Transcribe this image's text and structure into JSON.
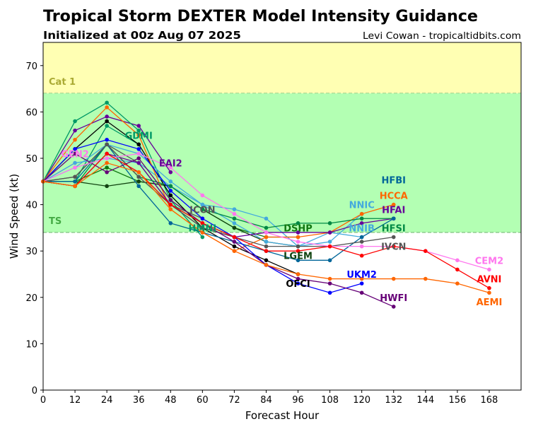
{
  "header": {
    "title": "Tropical Storm DEXTER Model Intensity Guidance",
    "subtitle": "Initialized at 00z Aug 07 2025",
    "credit": "Levi Cowan - tropicaltidbits.com"
  },
  "chart_data": {
    "type": "line",
    "xlabel": "Forecast Hour",
    "ylabel": "Wind Speed (kt)",
    "xlim": [
      0,
      180
    ],
    "ylim": [
      0,
      75
    ],
    "xticks": [
      0,
      12,
      24,
      36,
      48,
      60,
      72,
      84,
      96,
      108,
      120,
      132,
      144,
      156,
      168
    ],
    "yticks": [
      0,
      10,
      20,
      30,
      40,
      50,
      60,
      70
    ],
    "bands": [
      {
        "name": "Cat 1",
        "from": 64,
        "to": 75,
        "color": "#ffffb3",
        "label_color": "#aaaa33"
      },
      {
        "name": "TS",
        "from": 34,
        "to": 64,
        "color": "#b3ffb3",
        "label_color": "#44aa44"
      }
    ],
    "x_step": 12,
    "series": [
      {
        "name": "GEN2",
        "color": "#ff77ee",
        "values": [
          45,
          49
        ]
      },
      {
        "name": "GDMI",
        "color": "#009966",
        "values": [
          45,
          45,
          57,
          53
        ]
      },
      {
        "name": "EAI2",
        "color": "#660099",
        "values": [
          45,
          56,
          59,
          57,
          47
        ]
      },
      {
        "name": "ICON",
        "color": "#555555",
        "values": [
          45,
          46,
          53,
          49,
          40,
          37
        ]
      },
      {
        "name": "HMNI",
        "color": "#009966",
        "values": [
          45,
          58,
          62,
          56,
          41,
          33
        ]
      },
      {
        "name": "DSHP",
        "color": "#117711",
        "values": [
          45,
          45,
          48,
          45,
          44,
          39,
          35,
          33,
          33
        ]
      },
      {
        "name": "LGEM",
        "color": "#114411",
        "values": [
          45,
          45,
          44,
          45,
          44,
          39,
          35,
          32,
          31
        ]
      },
      {
        "name": "OFCI",
        "color": "#000000",
        "values": [
          45,
          52,
          58,
          53,
          42,
          35,
          31,
          28,
          25
        ]
      },
      {
        "name": "NNIC",
        "color": "#44aadd",
        "values": [
          45,
          48,
          53,
          51,
          45,
          40,
          39,
          37,
          31,
          32,
          38
        ]
      },
      {
        "name": "NNIB",
        "color": "#44aadd",
        "values": [
          45,
          49,
          50,
          49,
          44,
          40,
          36,
          32,
          31,
          34,
          33
        ]
      },
      {
        "name": "HCCA",
        "color": "#ff6600",
        "values": [
          45,
          54,
          61,
          55,
          39,
          34,
          30,
          33,
          33,
          34,
          38,
          40
        ]
      },
      {
        "name": "HFAI",
        "color": "#660099",
        "values": [
          45,
          44,
          51,
          49,
          40,
          35,
          33,
          34,
          34,
          34,
          36,
          37
        ]
      },
      {
        "name": "HFSI",
        "color": "#008844",
        "values": [
          45,
          44,
          53,
          46,
          44,
          39,
          37,
          35,
          36,
          36,
          37,
          37
        ]
      },
      {
        "name": "HFBI",
        "color": "#006699",
        "values": [
          45,
          45,
          53,
          44,
          36,
          34,
          32,
          30,
          28,
          28,
          33,
          37
        ]
      },
      {
        "name": "IVCN",
        "color": "#555555",
        "values": [
          45,
          46,
          53,
          46,
          40,
          35,
          33,
          31,
          31,
          31,
          32,
          33
        ]
      },
      {
        "name": "UKM2",
        "color": "#0000ff",
        "values": [
          45,
          52,
          54,
          52,
          43,
          37,
          33,
          27,
          23,
          21,
          23
        ]
      },
      {
        "name": "HWFI",
        "color": "#660077",
        "values": [
          45,
          51,
          47,
          50,
          41,
          36,
          32,
          27,
          24,
          23,
          21,
          18
        ]
      },
      {
        "name": "CEM2",
        "color": "#ff77ee",
        "values": [
          45,
          48,
          50,
          51,
          48,
          42,
          38,
          34,
          32,
          31,
          31,
          31,
          30,
          28,
          26
        ]
      },
      {
        "name": "AVNI",
        "color": "#ff0000",
        "values": [
          45,
          44,
          51,
          47,
          40,
          36,
          33,
          30,
          30,
          31,
          29,
          31,
          30,
          26,
          22
        ]
      },
      {
        "name": "AEMI",
        "color": "#ff6600",
        "values": [
          45,
          44,
          49,
          47,
          39,
          34,
          30,
          27,
          25,
          24,
          24,
          24,
          24,
          23,
          21
        ]
      }
    ]
  }
}
